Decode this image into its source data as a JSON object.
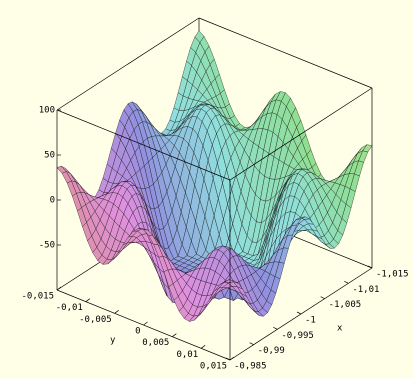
{
  "chart_data": {
    "type": "surface3d",
    "xlabel": "x",
    "ylabel": "y",
    "xlim": [
      -0.985,
      -1.015
    ],
    "xticks": [
      {
        "value": -0.985,
        "label": "-0,985"
      },
      {
        "value": -0.99,
        "label": "-0,99"
      },
      {
        "value": -0.995,
        "label": "-0,995"
      },
      {
        "value": -1,
        "label": "-1"
      },
      {
        "value": -1.005,
        "label": "-1,005"
      },
      {
        "value": -1.01,
        "label": "-1,01"
      },
      {
        "value": -1.015,
        "label": "-1,015"
      }
    ],
    "ylim": [
      -0.015,
      0.015
    ],
    "yticks": [
      {
        "value": -0.015,
        "label": "-0,015"
      },
      {
        "value": -0.01,
        "label": "-0,01"
      },
      {
        "value": -0.005,
        "label": "-0,005"
      },
      0,
      {
        "value": 0.005,
        "label": "0,005"
      },
      {
        "value": 0.01,
        "label": "0,01"
      },
      {
        "value": 0.015,
        "label": "0,015"
      }
    ],
    "zlim": [
      -100,
      100
    ],
    "zticks": [
      -50,
      0,
      50,
      100
    ]
  }
}
